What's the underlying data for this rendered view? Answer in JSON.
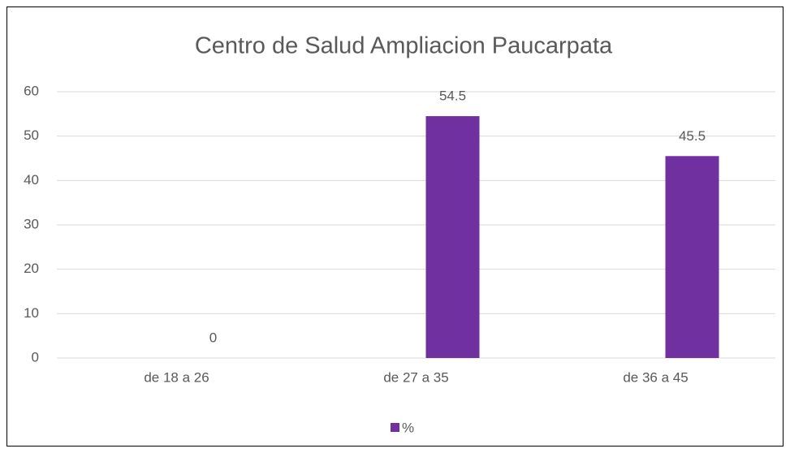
{
  "chart_data": {
    "type": "bar",
    "title": "Centro de Salud Ampliacion Paucarpata",
    "categories": [
      "de 18 a 26",
      "de 27 a 35",
      "de 36 a 45"
    ],
    "series": [
      {
        "name": "%",
        "color": "#7030a0",
        "values": [
          0,
          54.5,
          45.5
        ]
      }
    ],
    "ylim": [
      0,
      60
    ],
    "yticks": [
      0,
      10,
      20,
      30,
      40,
      50,
      60
    ],
    "grid": true,
    "legend": "bottom"
  }
}
